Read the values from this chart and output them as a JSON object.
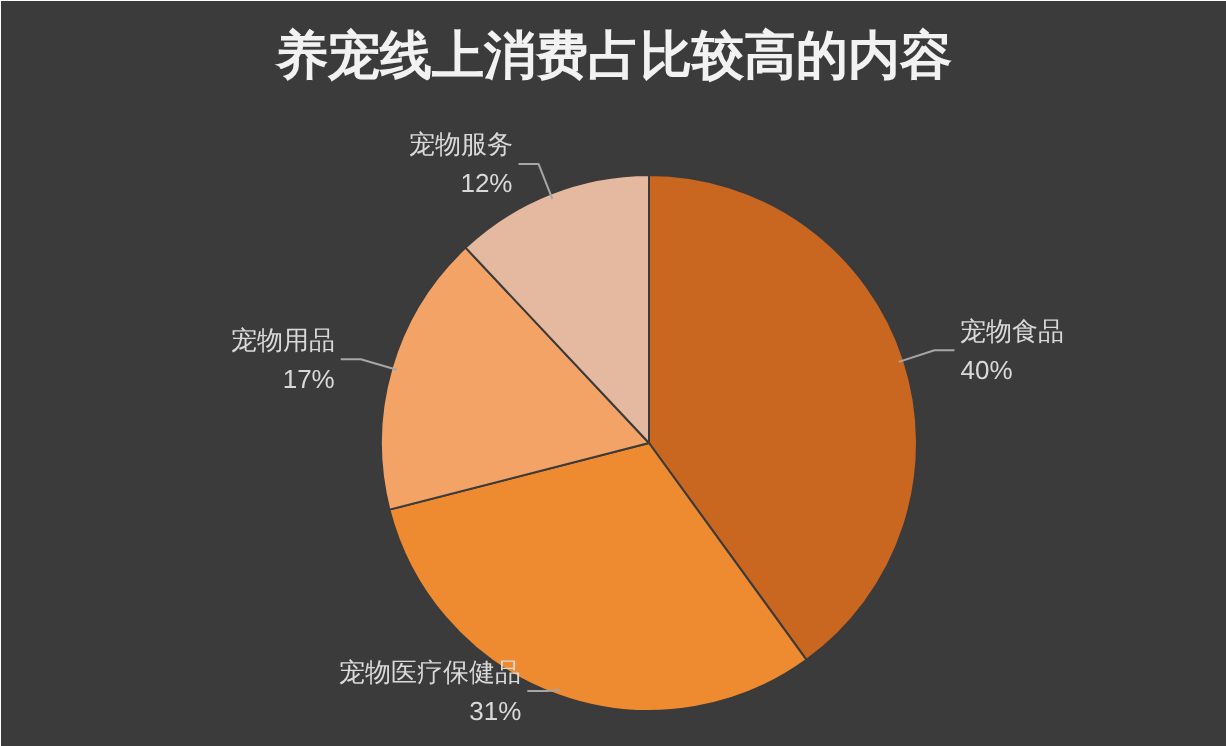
{
  "chart_data": {
    "type": "pie",
    "title": "养宠线上消费占比较高的内容",
    "categories": [
      "宠物食品",
      "宠物医疗保健品",
      "宠物用品",
      "宠物服务"
    ],
    "values": [
      40,
      31,
      17,
      12
    ],
    "value_labels": [
      "40%",
      "31%",
      "17%",
      "12%"
    ],
    "colors": [
      "#c9661f",
      "#ee8a2f",
      "#f3a366",
      "#e5b8a0"
    ]
  }
}
